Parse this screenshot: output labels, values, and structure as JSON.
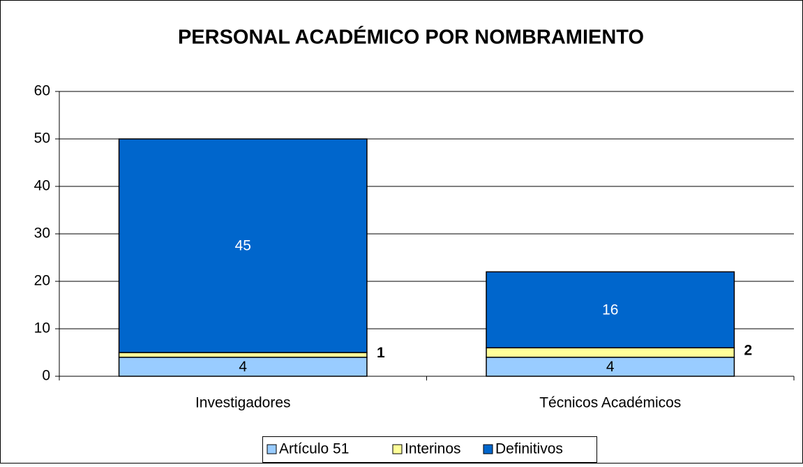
{
  "chart_data": {
    "type": "stacked_bar",
    "title": "PERSONAL ACADÉMICO POR NOMBRAMIENTO",
    "categories": [
      "Investigadores",
      "Técnicos Académicos"
    ],
    "series": [
      {
        "name": "Artículo 51",
        "color": "#99ccff",
        "values": [
          4,
          4
        ]
      },
      {
        "name": "Interinos",
        "color": "#ffff99",
        "values": [
          1,
          2
        ]
      },
      {
        "name": "Definitivos",
        "color": "#0066cc",
        "values": [
          45,
          16
        ]
      }
    ],
    "ylim": [
      0,
      60
    ],
    "yticks": [
      0,
      10,
      20,
      30,
      40,
      50,
      60
    ],
    "grid": true,
    "legend": "bottom"
  }
}
